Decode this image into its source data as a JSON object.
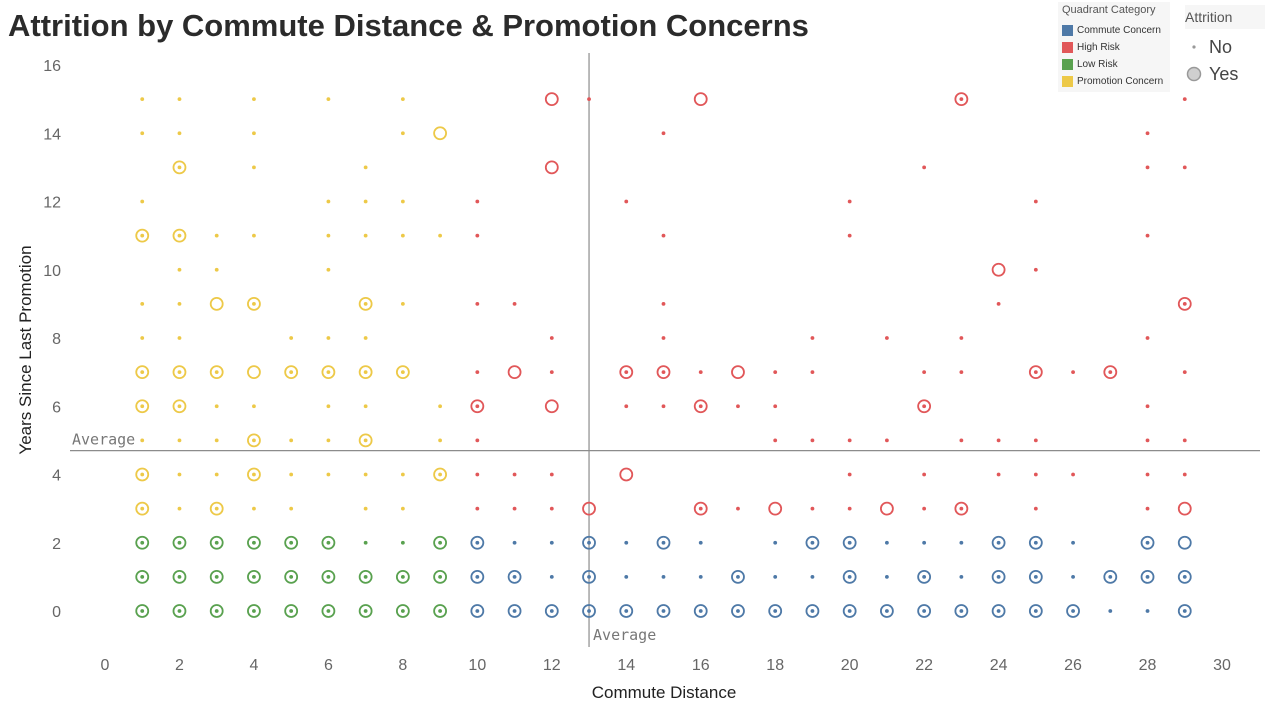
{
  "chart_data": {
    "type": "scatter",
    "title": "Attrition by Commute Distance & Promotion Concerns",
    "xlabel": "Commute Distance",
    "ylabel": "Years Since Last Promotion",
    "xlim": [
      0,
      30
    ],
    "ylim": [
      -1,
      16.6
    ],
    "xticks": [
      0,
      2,
      4,
      6,
      8,
      10,
      12,
      14,
      16,
      18,
      20,
      22,
      24,
      26,
      28,
      30
    ],
    "yticks": [
      0,
      2,
      4,
      6,
      8,
      10,
      12,
      14,
      16
    ],
    "grid": false,
    "reference_lines": [
      {
        "axis": "x",
        "value": 13,
        "label": "Average"
      },
      {
        "axis": "y",
        "value": 4.7,
        "label": "Average"
      }
    ],
    "legend_quadrant": {
      "title": "Quadrant Category",
      "placement": "top-right",
      "items": [
        {
          "label": "Commute Concern",
          "color": "#4e79a7"
        },
        {
          "label": "High Risk",
          "color": "#e15759"
        },
        {
          "label": "Low Risk",
          "color": "#59a14f"
        },
        {
          "label": "Promotion Concern",
          "color": "#edc948"
        }
      ]
    },
    "legend_attrition": {
      "title": "Attrition",
      "placement": "top-right",
      "items": [
        {
          "label": "No"
        },
        {
          "label": "Yes"
        }
      ]
    },
    "series": [
      {
        "name": "Promotion Concern",
        "color": "#edc948",
        "no": [
          [
            1,
            15
          ],
          [
            2,
            15
          ],
          [
            4,
            15
          ],
          [
            6,
            15
          ],
          [
            8,
            15
          ],
          [
            1,
            14
          ],
          [
            2,
            14
          ],
          [
            4,
            14
          ],
          [
            8,
            14
          ],
          [
            4,
            13
          ],
          [
            7,
            13
          ],
          [
            1,
            12
          ],
          [
            6,
            12
          ],
          [
            7,
            12
          ],
          [
            8,
            12
          ],
          [
            3,
            11
          ],
          [
            4,
            11
          ],
          [
            6,
            11
          ],
          [
            7,
            11
          ],
          [
            8,
            11
          ],
          [
            9,
            11
          ],
          [
            2,
            10
          ],
          [
            3,
            10
          ],
          [
            6,
            10
          ],
          [
            1,
            9
          ],
          [
            2,
            9
          ],
          [
            8,
            9
          ],
          [
            1,
            8
          ],
          [
            2,
            8
          ],
          [
            5,
            8
          ],
          [
            6,
            8
          ],
          [
            7,
            8
          ],
          [
            3,
            6
          ],
          [
            4,
            6
          ],
          [
            6,
            6
          ],
          [
            7,
            6
          ],
          [
            9,
            6
          ],
          [
            1,
            5
          ],
          [
            2,
            5
          ],
          [
            3,
            5
          ],
          [
            5,
            5
          ],
          [
            6,
            5
          ],
          [
            9,
            5
          ],
          [
            2,
            4
          ],
          [
            3,
            4
          ],
          [
            5,
            4
          ],
          [
            6,
            4
          ],
          [
            7,
            4
          ],
          [
            8,
            4
          ],
          [
            2,
            3
          ],
          [
            4,
            3
          ],
          [
            5,
            3
          ],
          [
            7,
            3
          ],
          [
            8,
            3
          ]
        ],
        "yes": [
          [
            9,
            14
          ],
          [
            3,
            9
          ],
          [
            4,
            7
          ]
        ],
        "yes_dot": [
          [
            2,
            13
          ],
          [
            1,
            11
          ],
          [
            2,
            11
          ],
          [
            4,
            9
          ],
          [
            7,
            9
          ],
          [
            1,
            7
          ],
          [
            2,
            7
          ],
          [
            3,
            7
          ],
          [
            5,
            7
          ],
          [
            6,
            7
          ],
          [
            7,
            7
          ],
          [
            8,
            7
          ],
          [
            1,
            6
          ],
          [
            2,
            6
          ],
          [
            4,
            5
          ],
          [
            7,
            5
          ],
          [
            1,
            4
          ],
          [
            4,
            4
          ],
          [
            9,
            4
          ],
          [
            1,
            3
          ],
          [
            3,
            3
          ]
        ]
      },
      {
        "name": "High Risk",
        "color": "#e15759",
        "no": [
          [
            13,
            15
          ],
          [
            29,
            15
          ],
          [
            15,
            14
          ],
          [
            28,
            14
          ],
          [
            22,
            13
          ],
          [
            28,
            13
          ],
          [
            29,
            13
          ],
          [
            10,
            12
          ],
          [
            14,
            12
          ],
          [
            20,
            12
          ],
          [
            25,
            12
          ],
          [
            10,
            11
          ],
          [
            15,
            11
          ],
          [
            20,
            11
          ],
          [
            28,
            11
          ],
          [
            25,
            10
          ],
          [
            10,
            9
          ],
          [
            11,
            9
          ],
          [
            15,
            9
          ],
          [
            24,
            9
          ],
          [
            12,
            8
          ],
          [
            15,
            8
          ],
          [
            19,
            8
          ],
          [
            21,
            8
          ],
          [
            23,
            8
          ],
          [
            28,
            8
          ],
          [
            10,
            7
          ],
          [
            12,
            7
          ],
          [
            16,
            7
          ],
          [
            18,
            7
          ],
          [
            19,
            7
          ],
          [
            22,
            7
          ],
          [
            23,
            7
          ],
          [
            26,
            7
          ],
          [
            29,
            7
          ],
          [
            14,
            6
          ],
          [
            15,
            6
          ],
          [
            17,
            6
          ],
          [
            18,
            6
          ],
          [
            28,
            6
          ],
          [
            10,
            5
          ],
          [
            18,
            5
          ],
          [
            19,
            5
          ],
          [
            20,
            5
          ],
          [
            21,
            5
          ],
          [
            23,
            5
          ],
          [
            24,
            5
          ],
          [
            25,
            5
          ],
          [
            28,
            5
          ],
          [
            29,
            5
          ],
          [
            10,
            4
          ],
          [
            11,
            4
          ],
          [
            12,
            4
          ],
          [
            20,
            4
          ],
          [
            22,
            4
          ],
          [
            24,
            4
          ],
          [
            25,
            4
          ],
          [
            26,
            4
          ],
          [
            28,
            4
          ],
          [
            29,
            4
          ],
          [
            10,
            3
          ],
          [
            11,
            3
          ],
          [
            12,
            3
          ],
          [
            17,
            3
          ],
          [
            19,
            3
          ],
          [
            20,
            3
          ],
          [
            22,
            3
          ],
          [
            25,
            3
          ],
          [
            28,
            3
          ]
        ],
        "yes": [
          [
            12,
            15
          ],
          [
            16,
            15
          ],
          [
            12,
            13
          ],
          [
            24,
            10
          ],
          [
            11,
            7
          ],
          [
            17,
            7
          ],
          [
            12,
            6
          ],
          [
            14,
            4
          ],
          [
            13,
            3
          ],
          [
            18,
            3
          ],
          [
            21,
            3
          ],
          [
            29,
            3
          ]
        ],
        "yes_dot": [
          [
            23,
            15
          ],
          [
            29,
            9
          ],
          [
            14,
            7
          ],
          [
            15,
            7
          ],
          [
            25,
            7
          ],
          [
            27,
            7
          ],
          [
            10,
            6
          ],
          [
            16,
            6
          ],
          [
            22,
            6
          ],
          [
            16,
            3
          ],
          [
            23,
            3
          ]
        ]
      },
      {
        "name": "Low Risk",
        "color": "#59a14f",
        "no": [
          [
            7,
            2
          ],
          [
            8,
            2
          ]
        ],
        "yes": [],
        "yes_dot": [
          [
            1,
            2
          ],
          [
            2,
            2
          ],
          [
            3,
            2
          ],
          [
            4,
            2
          ],
          [
            5,
            2
          ],
          [
            6,
            2
          ],
          [
            9,
            2
          ],
          [
            1,
            1
          ],
          [
            2,
            1
          ],
          [
            3,
            1
          ],
          [
            4,
            1
          ],
          [
            5,
            1
          ],
          [
            6,
            1
          ],
          [
            7,
            1
          ],
          [
            8,
            1
          ],
          [
            9,
            1
          ],
          [
            1,
            0
          ],
          [
            2,
            0
          ],
          [
            3,
            0
          ],
          [
            4,
            0
          ],
          [
            5,
            0
          ],
          [
            6,
            0
          ],
          [
            7,
            0
          ],
          [
            8,
            0
          ],
          [
            9,
            0
          ]
        ]
      },
      {
        "name": "Commute Concern",
        "color": "#4e79a7",
        "no": [
          [
            11,
            2
          ],
          [
            12,
            2
          ],
          [
            14,
            2
          ],
          [
            16,
            2
          ],
          [
            18,
            2
          ],
          [
            21,
            2
          ],
          [
            22,
            2
          ],
          [
            23,
            2
          ],
          [
            26,
            2
          ],
          [
            12,
            1
          ],
          [
            14,
            1
          ],
          [
            15,
            1
          ],
          [
            16,
            1
          ],
          [
            18,
            1
          ],
          [
            19,
            1
          ],
          [
            21,
            1
          ],
          [
            23,
            1
          ],
          [
            26,
            1
          ],
          [
            27,
            0
          ],
          [
            28,
            0
          ]
        ],
        "yes": [
          [
            29,
            2
          ]
        ],
        "yes_dot": [
          [
            10,
            2
          ],
          [
            13,
            2
          ],
          [
            15,
            2
          ],
          [
            19,
            2
          ],
          [
            20,
            2
          ],
          [
            24,
            2
          ],
          [
            25,
            2
          ],
          [
            28,
            2
          ],
          [
            10,
            1
          ],
          [
            11,
            1
          ],
          [
            13,
            1
          ],
          [
            17,
            1
          ],
          [
            20,
            1
          ],
          [
            22,
            1
          ],
          [
            24,
            1
          ],
          [
            25,
            1
          ],
          [
            27,
            1
          ],
          [
            28,
            1
          ],
          [
            29,
            1
          ],
          [
            10,
            0
          ],
          [
            11,
            0
          ],
          [
            12,
            0
          ],
          [
            13,
            0
          ],
          [
            14,
            0
          ],
          [
            15,
            0
          ],
          [
            16,
            0
          ],
          [
            17,
            0
          ],
          [
            18,
            0
          ],
          [
            19,
            0
          ],
          [
            20,
            0
          ],
          [
            21,
            0
          ],
          [
            22,
            0
          ],
          [
            23,
            0
          ],
          [
            24,
            0
          ],
          [
            25,
            0
          ],
          [
            26,
            0
          ],
          [
            29,
            0
          ]
        ]
      }
    ]
  }
}
